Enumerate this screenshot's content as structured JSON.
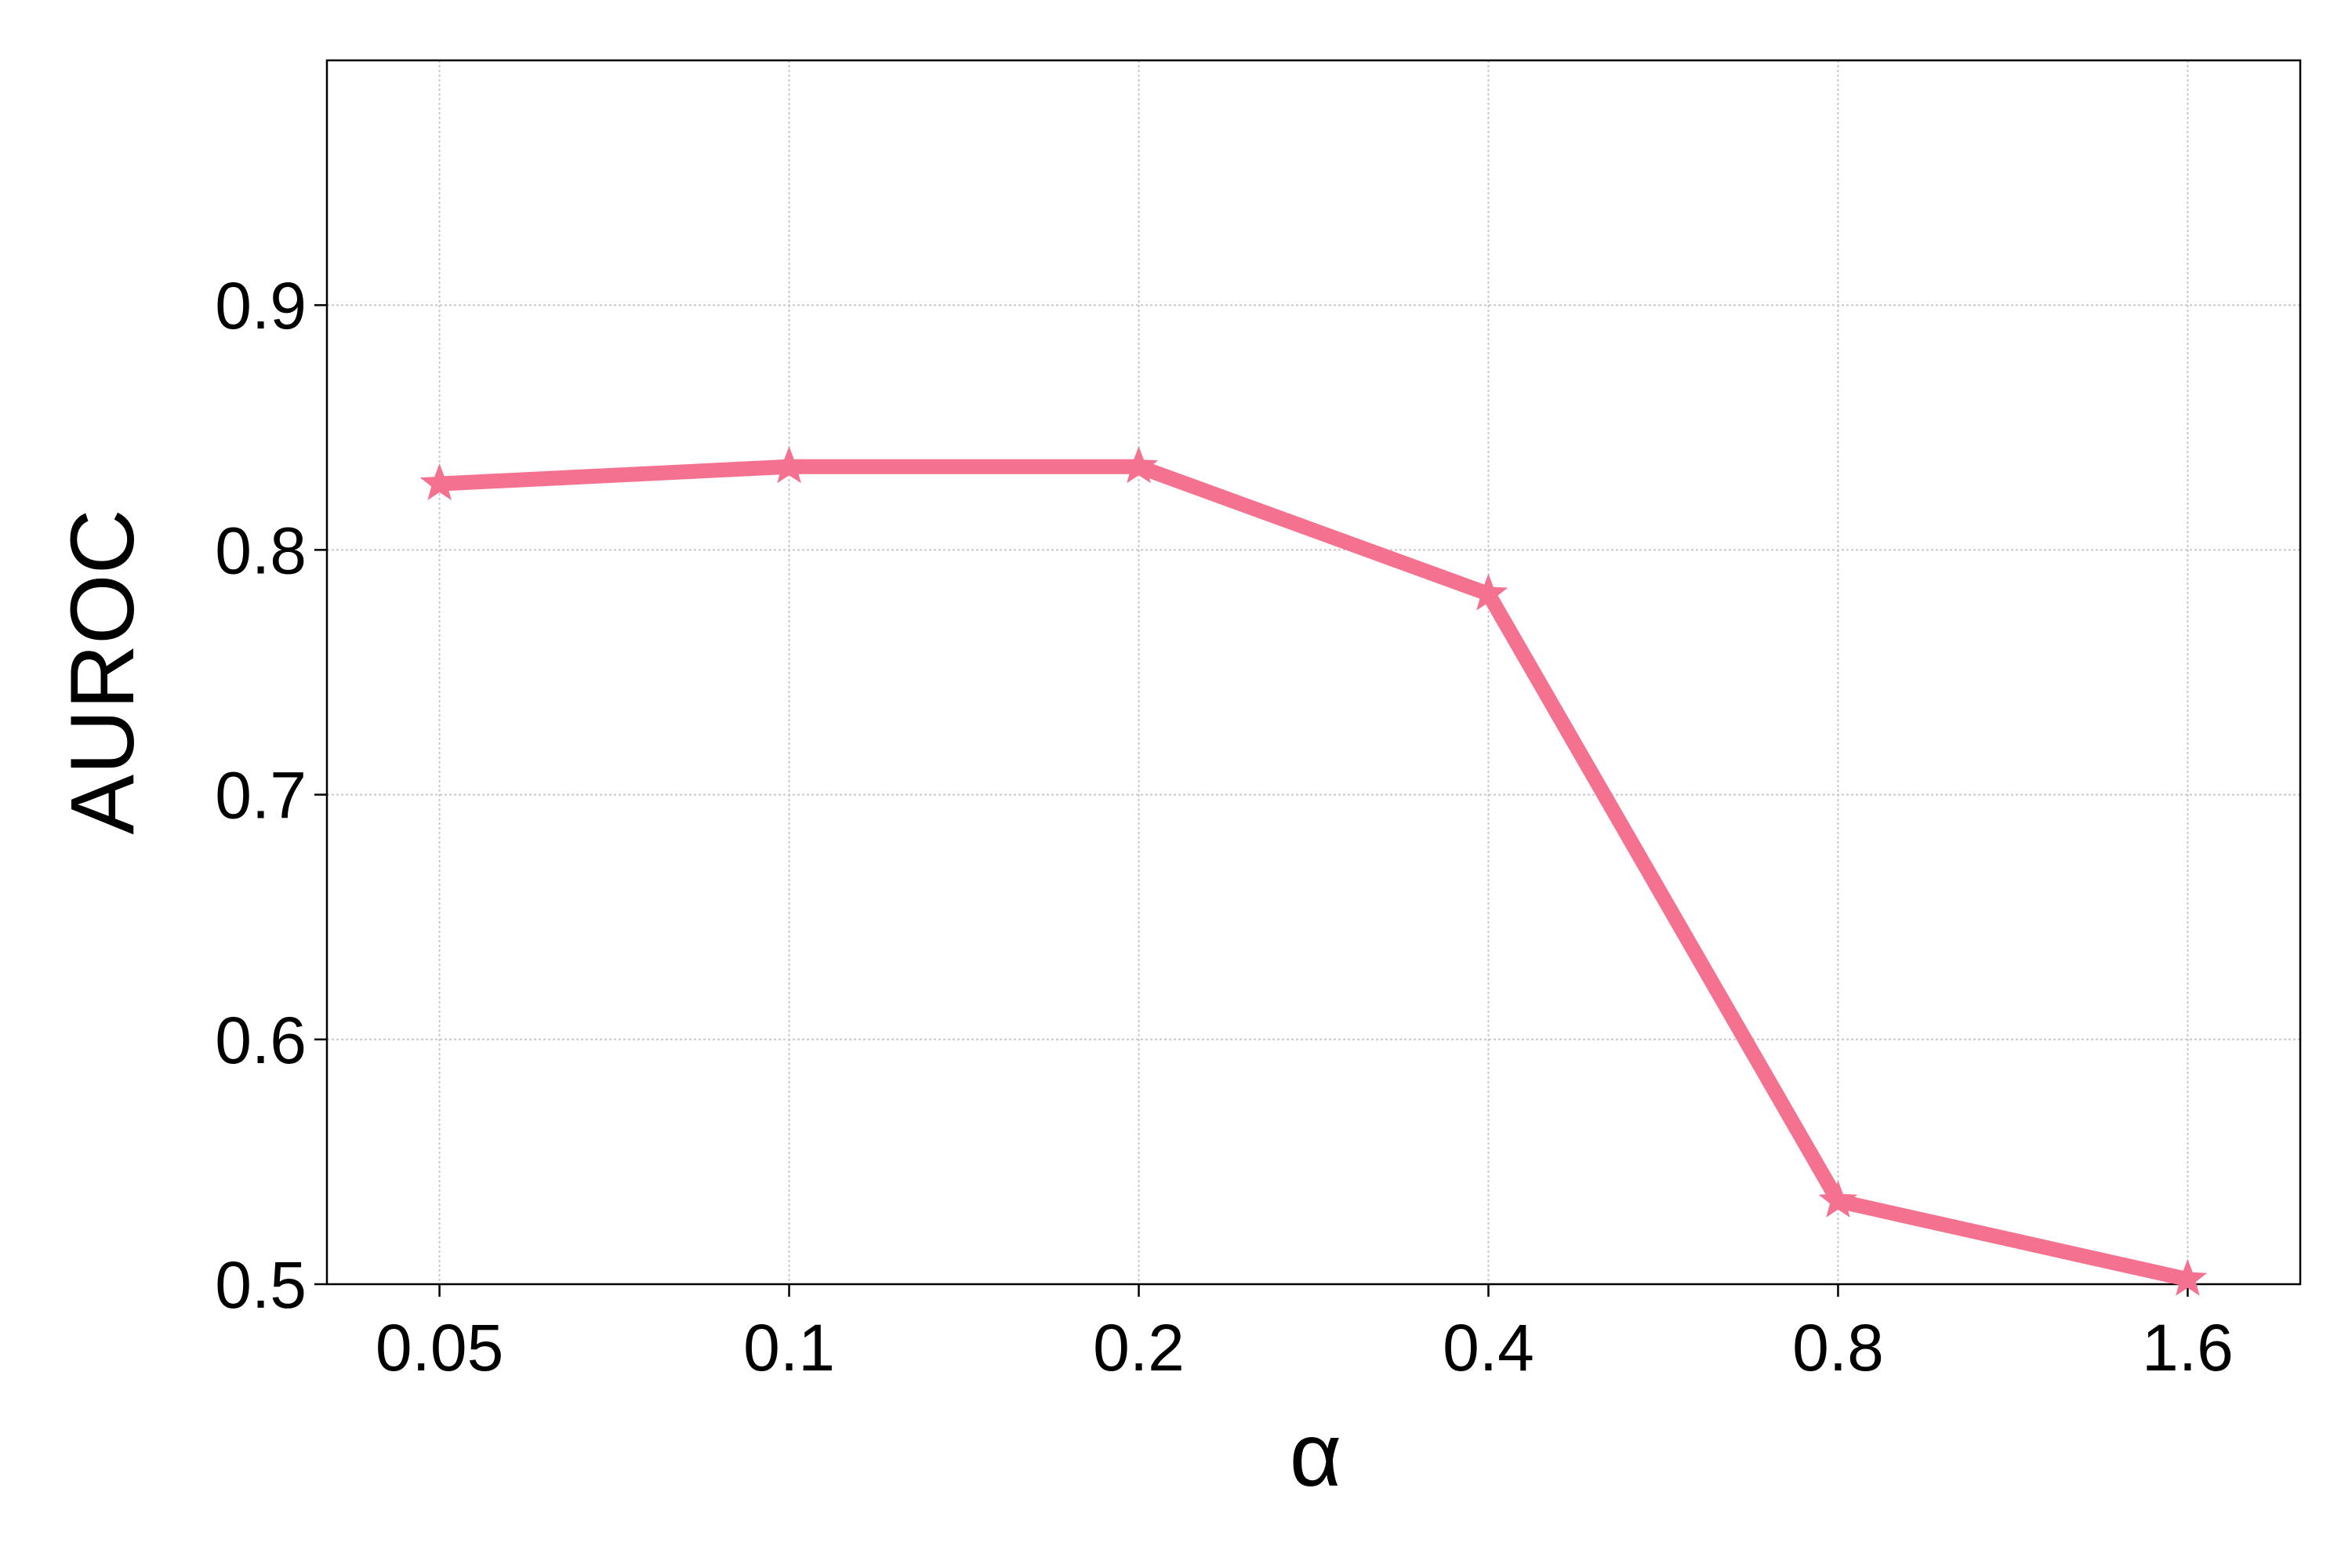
{
  "chart_data": {
    "type": "line",
    "x_label": "α",
    "y_label": "AUROC",
    "x": [
      0.05,
      0.1,
      0.2,
      0.4,
      0.8,
      1.6
    ],
    "series": [
      {
        "name": "AUROC",
        "color": "#f4728f",
        "values": [
          0.827,
          0.834,
          0.834,
          0.782,
          0.534,
          0.502
        ]
      }
    ],
    "x_scale": "log",
    "xlim": [
      0.04,
      2.0
    ],
    "xticks": [
      0.05,
      0.1,
      0.2,
      0.4,
      0.8,
      1.6
    ],
    "ylim": [
      0.5,
      1.0
    ],
    "yticks": [
      0.5,
      0.6,
      0.7,
      0.8,
      0.9
    ],
    "grid": true,
    "marker": "star"
  }
}
